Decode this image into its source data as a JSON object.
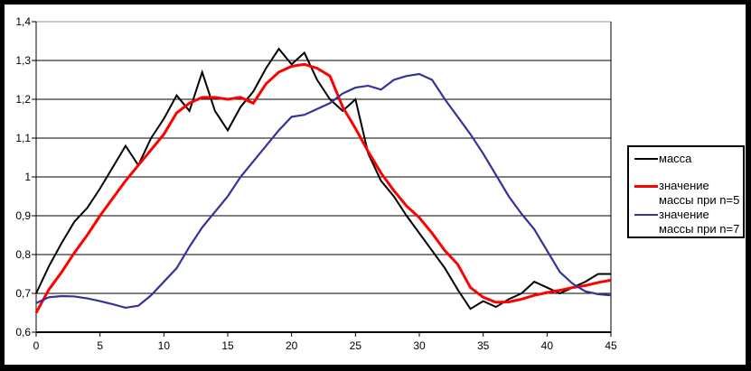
{
  "chart_data": {
    "type": "line",
    "title": "",
    "xlabel": "",
    "ylabel": "",
    "x_range": [
      0,
      45
    ],
    "y_range": [
      0.6,
      1.4
    ],
    "x_tick_step": 5,
    "y_tick_step": 0.1,
    "grid": "horizontal",
    "legend_position": "right",
    "x_tick_labels": [
      "0",
      "5",
      "10",
      "15",
      "20",
      "25",
      "30",
      "35",
      "40",
      "45"
    ],
    "y_tick_labels_top_down": [
      "1,4",
      "1,3",
      "1,2",
      "1,1",
      "1",
      "0,9",
      "0,8",
      "0,7",
      "0,6"
    ],
    "x": [
      0,
      1,
      2,
      3,
      4,
      5,
      6,
      7,
      8,
      9,
      10,
      11,
      12,
      13,
      14,
      15,
      16,
      17,
      18,
      19,
      20,
      21,
      22,
      23,
      24,
      25,
      26,
      27,
      28,
      29,
      30,
      31,
      32,
      33,
      34,
      35,
      36,
      37,
      38,
      39,
      40,
      41,
      42,
      43,
      44,
      45
    ],
    "series": [
      {
        "name": "масса",
        "color": "#000000",
        "values": [
          0.7,
          0.77,
          0.83,
          0.885,
          0.92,
          0.97,
          1.025,
          1.08,
          1.03,
          1.1,
          1.15,
          1.21,
          1.17,
          1.27,
          1.17,
          1.12,
          1.18,
          1.22,
          1.28,
          1.33,
          1.29,
          1.32,
          1.25,
          1.2,
          1.17,
          1.2,
          1.06,
          0.99,
          0.95,
          0.9,
          0.855,
          0.81,
          0.765,
          0.71,
          0.66,
          0.68,
          0.665,
          0.685,
          0.7,
          0.73,
          0.715,
          0.7,
          0.715,
          0.73,
          0.75,
          0.75
        ]
      },
      {
        "name": "значение массы при n=5",
        "color": "#ff0000",
        "values": [
          0.65,
          0.71,
          0.755,
          0.805,
          0.85,
          0.9,
          0.945,
          0.99,
          1.03,
          1.07,
          1.11,
          1.165,
          1.19,
          1.205,
          1.205,
          1.2,
          1.205,
          1.19,
          1.24,
          1.27,
          1.285,
          1.29,
          1.28,
          1.26,
          1.18,
          1.125,
          1.065,
          1.01,
          0.965,
          0.925,
          0.895,
          0.855,
          0.81,
          0.775,
          0.715,
          0.69,
          0.677,
          0.678,
          0.685,
          0.695,
          0.702,
          0.708,
          0.715,
          0.72,
          0.728,
          0.734
        ]
      },
      {
        "name": "значение массы при n=7",
        "color": "#333399",
        "values": [
          0.675,
          0.69,
          0.693,
          0.692,
          0.687,
          0.68,
          0.672,
          0.663,
          0.668,
          0.695,
          0.73,
          0.765,
          0.82,
          0.87,
          0.91,
          0.95,
          1.0,
          1.04,
          1.08,
          1.12,
          1.155,
          1.16,
          1.175,
          1.19,
          1.215,
          1.23,
          1.235,
          1.225,
          1.25,
          1.26,
          1.265,
          1.25,
          1.2,
          1.155,
          1.11,
          1.06,
          1.005,
          0.95,
          0.905,
          0.865,
          0.81,
          0.755,
          0.725,
          0.705,
          0.698,
          0.695
        ]
      }
    ]
  },
  "colors": {
    "background": "#ffffff",
    "frame": "#000000",
    "axis": "#000000",
    "gridline": "#000000",
    "top_gridline": "#969696"
  }
}
